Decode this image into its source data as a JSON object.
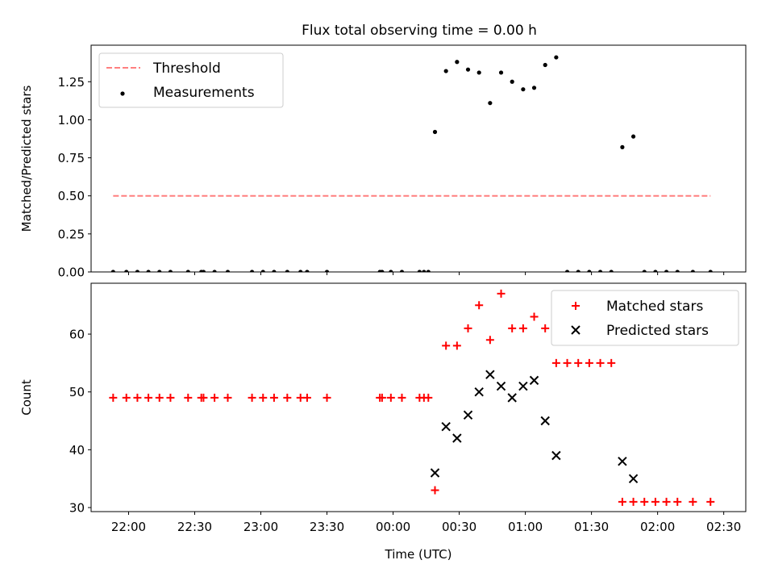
{
  "figure": {
    "title": "Flux total observing time = 0.00 h"
  },
  "chart_data": [
    {
      "type": "scatter",
      "panel": "top",
      "ylabel": "Matched/Predicted stars",
      "xlabel": "",
      "xlim": [
        "21:43",
        "02:40"
      ],
      "ylim": [
        0,
        1.49
      ],
      "yticks": [
        0.0,
        0.25,
        0.5,
        0.75,
        1.0,
        1.25
      ],
      "ytick_labels": [
        "0.00",
        "0.25",
        "0.50",
        "0.75",
        "1.00",
        "1.25"
      ],
      "legend_position": "upper-left",
      "threshold": {
        "name": "Threshold",
        "value": 0.5,
        "x_range": [
          "21:53",
          "02:24"
        ],
        "color": "#ff7f7f",
        "style": "dashed"
      },
      "series": [
        {
          "name": "Measurements",
          "marker": "dot",
          "color": "#000000",
          "points": [
            [
              "21:53",
              0.0
            ],
            [
              "21:59",
              0.0
            ],
            [
              "22:04",
              0.0
            ],
            [
              "22:09",
              0.0
            ],
            [
              "22:14",
              0.0
            ],
            [
              "22:19",
              0.0
            ],
            [
              "22:27",
              0.0
            ],
            [
              "22:33",
              0.0
            ],
            [
              "22:34",
              0.0
            ],
            [
              "22:39",
              0.0
            ],
            [
              "22:45",
              0.0
            ],
            [
              "22:56",
              0.0
            ],
            [
              "23:01",
              0.0
            ],
            [
              "23:06",
              0.0
            ],
            [
              "23:12",
              0.0
            ],
            [
              "23:18",
              0.0
            ],
            [
              "23:21",
              0.0
            ],
            [
              "23:30",
              0.0
            ],
            [
              "23:54",
              0.0
            ],
            [
              "23:55",
              0.0
            ],
            [
              "23:59",
              0.0
            ],
            [
              "00:04",
              0.0
            ],
            [
              "00:12",
              0.0
            ],
            [
              "00:14",
              0.0
            ],
            [
              "00:16",
              0.0
            ],
            [
              "00:19",
              0.92
            ],
            [
              "00:24",
              1.32
            ],
            [
              "00:29",
              1.38
            ],
            [
              "00:34",
              1.33
            ],
            [
              "00:39",
              1.31
            ],
            [
              "00:44",
              1.11
            ],
            [
              "00:49",
              1.31
            ],
            [
              "00:54",
              1.25
            ],
            [
              "00:59",
              1.2
            ],
            [
              "01:04",
              1.21
            ],
            [
              "01:09",
              1.36
            ],
            [
              "01:14",
              1.41
            ],
            [
              "01:19",
              0.0
            ],
            [
              "01:24",
              0.0
            ],
            [
              "01:29",
              0.0
            ],
            [
              "01:34",
              0.0
            ],
            [
              "01:39",
              0.0
            ],
            [
              "01:44",
              0.82
            ],
            [
              "01:49",
              0.89
            ],
            [
              "01:54",
              0.0
            ],
            [
              "01:59",
              0.0
            ],
            [
              "02:04",
              0.0
            ],
            [
              "02:09",
              0.0
            ],
            [
              "02:16",
              0.0
            ],
            [
              "02:24",
              0.0
            ]
          ]
        }
      ]
    },
    {
      "type": "scatter",
      "panel": "bottom",
      "ylabel": "Count",
      "xlabel": "Time (UTC)",
      "xlim": [
        "21:43",
        "02:40"
      ],
      "ylim": [
        29.3,
        68.8
      ],
      "yticks": [
        30,
        40,
        50,
        60
      ],
      "ytick_labels": [
        "30",
        "40",
        "50",
        "60"
      ],
      "xticks": [
        "22:00",
        "22:30",
        "23:00",
        "23:30",
        "00:00",
        "00:30",
        "01:00",
        "01:30",
        "02:00",
        "02:30"
      ],
      "legend_position": "upper-right",
      "series": [
        {
          "name": "Matched stars",
          "marker": "plus",
          "color": "#ff0000",
          "points": [
            [
              "21:53",
              49
            ],
            [
              "21:59",
              49
            ],
            [
              "22:04",
              49
            ],
            [
              "22:09",
              49
            ],
            [
              "22:14",
              49
            ],
            [
              "22:19",
              49
            ],
            [
              "22:27",
              49
            ],
            [
              "22:33",
              49
            ],
            [
              "22:34",
              49
            ],
            [
              "22:39",
              49
            ],
            [
              "22:45",
              49
            ],
            [
              "22:56",
              49
            ],
            [
              "23:01",
              49
            ],
            [
              "23:06",
              49
            ],
            [
              "23:12",
              49
            ],
            [
              "23:18",
              49
            ],
            [
              "23:21",
              49
            ],
            [
              "23:30",
              49
            ],
            [
              "23:54",
              49
            ],
            [
              "23:55",
              49
            ],
            [
              "23:59",
              49
            ],
            [
              "00:04",
              49
            ],
            [
              "00:12",
              49
            ],
            [
              "00:14",
              49
            ],
            [
              "00:16",
              49
            ],
            [
              "00:19",
              33
            ],
            [
              "00:24",
              58
            ],
            [
              "00:29",
              58
            ],
            [
              "00:34",
              61
            ],
            [
              "00:39",
              65
            ],
            [
              "00:44",
              59
            ],
            [
              "00:49",
              67
            ],
            [
              "00:54",
              61
            ],
            [
              "00:59",
              61
            ],
            [
              "01:04",
              63
            ],
            [
              "01:09",
              61
            ],
            [
              "01:14",
              55
            ],
            [
              "01:19",
              55
            ],
            [
              "01:24",
              55
            ],
            [
              "01:29",
              55
            ],
            [
              "01:34",
              55
            ],
            [
              "01:39",
              55
            ],
            [
              "01:44",
              31
            ],
            [
              "01:49",
              31
            ],
            [
              "01:54",
              31
            ],
            [
              "01:59",
              31
            ],
            [
              "02:04",
              31
            ],
            [
              "02:09",
              31
            ],
            [
              "02:16",
              31
            ],
            [
              "02:24",
              31
            ]
          ]
        },
        {
          "name": "Predicted stars",
          "marker": "x",
          "color": "#000000",
          "points": [
            [
              "00:19",
              36
            ],
            [
              "00:24",
              44
            ],
            [
              "00:29",
              42
            ],
            [
              "00:34",
              46
            ],
            [
              "00:39",
              50
            ],
            [
              "00:44",
              53
            ],
            [
              "00:49",
              51
            ],
            [
              "00:54",
              49
            ],
            [
              "00:59",
              51
            ],
            [
              "01:04",
              52
            ],
            [
              "01:09",
              45
            ],
            [
              "01:14",
              39
            ],
            [
              "01:44",
              38
            ],
            [
              "01:49",
              35
            ]
          ]
        }
      ]
    }
  ]
}
